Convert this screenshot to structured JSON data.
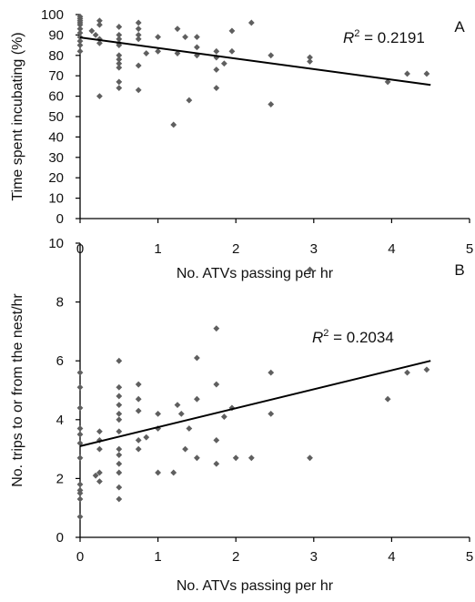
{
  "chart_data": [
    {
      "type": "scatter",
      "panel_letter": "A",
      "xlabel": "No. ATVs passing per hr",
      "ylabel": "Time spent incubating (%)",
      "xlim": [
        0,
        5
      ],
      "ylim": [
        0,
        100
      ],
      "x_ticks": [
        "0",
        "1",
        "2",
        "3",
        "4",
        "5"
      ],
      "y_ticks": [
        "0",
        "10",
        "20",
        "30",
        "40",
        "50",
        "60",
        "70",
        "80",
        "90",
        "100"
      ],
      "r2_prefix": "R",
      "r2_sup": "2",
      "r2_value": " = 0.2191",
      "trendline": {
        "x": [
          0,
          4.5
        ],
        "y": [
          88.8,
          65.5
        ]
      },
      "points": [
        {
          "x": 0,
          "y": 99
        },
        {
          "x": 0,
          "y": 98
        },
        {
          "x": 0,
          "y": 97
        },
        {
          "x": 0,
          "y": 96
        },
        {
          "x": 0,
          "y": 95
        },
        {
          "x": 0,
          "y": 93
        },
        {
          "x": 0,
          "y": 91
        },
        {
          "x": 0,
          "y": 89
        },
        {
          "x": 0,
          "y": 87
        },
        {
          "x": 0,
          "y": 85
        },
        {
          "x": 0,
          "y": 82
        },
        {
          "x": 0.15,
          "y": 92
        },
        {
          "x": 0.2,
          "y": 90
        },
        {
          "x": 0.25,
          "y": 97
        },
        {
          "x": 0.25,
          "y": 95
        },
        {
          "x": 0.25,
          "y": 88
        },
        {
          "x": 0.25,
          "y": 86
        },
        {
          "x": 0.25,
          "y": 60
        },
        {
          "x": 0.5,
          "y": 94
        },
        {
          "x": 0.5,
          "y": 90
        },
        {
          "x": 0.5,
          "y": 88
        },
        {
          "x": 0.5,
          "y": 86
        },
        {
          "x": 0.5,
          "y": 85
        },
        {
          "x": 0.5,
          "y": 80
        },
        {
          "x": 0.5,
          "y": 78
        },
        {
          "x": 0.5,
          "y": 76
        },
        {
          "x": 0.5,
          "y": 74
        },
        {
          "x": 0.5,
          "y": 67
        },
        {
          "x": 0.5,
          "y": 64
        },
        {
          "x": 0.75,
          "y": 96
        },
        {
          "x": 0.75,
          "y": 93
        },
        {
          "x": 0.75,
          "y": 90
        },
        {
          "x": 0.75,
          "y": 88
        },
        {
          "x": 0.75,
          "y": 75
        },
        {
          "x": 0.75,
          "y": 63
        },
        {
          "x": 0.85,
          "y": 81
        },
        {
          "x": 1,
          "y": 89
        },
        {
          "x": 1,
          "y": 82
        },
        {
          "x": 1.2,
          "y": 46
        },
        {
          "x": 1.25,
          "y": 93
        },
        {
          "x": 1.25,
          "y": 81
        },
        {
          "x": 1.35,
          "y": 89
        },
        {
          "x": 1.4,
          "y": 58
        },
        {
          "x": 1.5,
          "y": 89
        },
        {
          "x": 1.5,
          "y": 84
        },
        {
          "x": 1.5,
          "y": 80
        },
        {
          "x": 1.75,
          "y": 82
        },
        {
          "x": 1.75,
          "y": 79
        },
        {
          "x": 1.75,
          "y": 73
        },
        {
          "x": 1.75,
          "y": 64
        },
        {
          "x": 1.85,
          "y": 76
        },
        {
          "x": 1.95,
          "y": 92
        },
        {
          "x": 1.95,
          "y": 82
        },
        {
          "x": 2.2,
          "y": 96
        },
        {
          "x": 2.45,
          "y": 80
        },
        {
          "x": 2.45,
          "y": 56
        },
        {
          "x": 2.95,
          "y": 79
        },
        {
          "x": 2.95,
          "y": 77
        },
        {
          "x": 3.95,
          "y": 67
        },
        {
          "x": 4.2,
          "y": 71
        },
        {
          "x": 4.45,
          "y": 71
        }
      ]
    },
    {
      "type": "scatter",
      "panel_letter": "B",
      "xlabel": "No. ATVs passing per hr",
      "ylabel": "No. trips to or from the nest/hr",
      "xlim": [
        0,
        5
      ],
      "ylim": [
        0,
        10
      ],
      "x_ticks": [
        "0",
        "1",
        "2",
        "3",
        "4",
        "5"
      ],
      "y_ticks": [
        "0",
        "2",
        "4",
        "6",
        "8",
        "10"
      ],
      "r2_prefix": "R",
      "r2_sup": "2",
      "r2_value": " = 0.2034",
      "trendline": {
        "x": [
          0,
          4.5
        ],
        "y": [
          3.1,
          6.0
        ]
      },
      "points": [
        {
          "x": 0,
          "y": 5.6
        },
        {
          "x": 0,
          "y": 5.1
        },
        {
          "x": 0,
          "y": 4.4
        },
        {
          "x": 0,
          "y": 3.7
        },
        {
          "x": 0,
          "y": 3.5
        },
        {
          "x": 0,
          "y": 3.2
        },
        {
          "x": 0,
          "y": 2.7
        },
        {
          "x": 0,
          "y": 1.8
        },
        {
          "x": 0,
          "y": 1.6
        },
        {
          "x": 0,
          "y": 1.5
        },
        {
          "x": 0,
          "y": 1.3
        },
        {
          "x": 0,
          "y": 0.7
        },
        {
          "x": 0.2,
          "y": 2.1
        },
        {
          "x": 0.25,
          "y": 3.6
        },
        {
          "x": 0.25,
          "y": 3.3
        },
        {
          "x": 0.25,
          "y": 3.0
        },
        {
          "x": 0.25,
          "y": 2.2
        },
        {
          "x": 0.25,
          "y": 1.9
        },
        {
          "x": 0.5,
          "y": 6.0
        },
        {
          "x": 0.5,
          "y": 5.1
        },
        {
          "x": 0.5,
          "y": 4.8
        },
        {
          "x": 0.5,
          "y": 4.5
        },
        {
          "x": 0.5,
          "y": 4.2
        },
        {
          "x": 0.5,
          "y": 4.0
        },
        {
          "x": 0.5,
          "y": 3.6
        },
        {
          "x": 0.5,
          "y": 3.0
        },
        {
          "x": 0.5,
          "y": 2.8
        },
        {
          "x": 0.5,
          "y": 2.5
        },
        {
          "x": 0.5,
          "y": 2.2
        },
        {
          "x": 0.5,
          "y": 1.7
        },
        {
          "x": 0.5,
          "y": 1.3
        },
        {
          "x": 0.75,
          "y": 5.2
        },
        {
          "x": 0.75,
          "y": 4.7
        },
        {
          "x": 0.75,
          "y": 4.3
        },
        {
          "x": 0.75,
          "y": 3.3
        },
        {
          "x": 0.75,
          "y": 3.0
        },
        {
          "x": 0.85,
          "y": 3.4
        },
        {
          "x": 1,
          "y": 4.2
        },
        {
          "x": 1,
          "y": 3.7
        },
        {
          "x": 1,
          "y": 2.2
        },
        {
          "x": 1.2,
          "y": 2.2
        },
        {
          "x": 1.25,
          "y": 4.5
        },
        {
          "x": 1.3,
          "y": 4.2
        },
        {
          "x": 1.35,
          "y": 3.0
        },
        {
          "x": 1.4,
          "y": 3.7
        },
        {
          "x": 1.5,
          "y": 6.1
        },
        {
          "x": 1.5,
          "y": 4.7
        },
        {
          "x": 1.5,
          "y": 2.7
        },
        {
          "x": 1.75,
          "y": 7.1
        },
        {
          "x": 1.75,
          "y": 5.2
        },
        {
          "x": 1.75,
          "y": 3.3
        },
        {
          "x": 1.75,
          "y": 2.5
        },
        {
          "x": 1.85,
          "y": 4.1
        },
        {
          "x": 1.95,
          "y": 4.4
        },
        {
          "x": 2,
          "y": 2.7
        },
        {
          "x": 2.2,
          "y": 2.7
        },
        {
          "x": 2.45,
          "y": 5.6
        },
        {
          "x": 2.45,
          "y": 4.2
        },
        {
          "x": 2.95,
          "y": 9.1
        },
        {
          "x": 2.95,
          "y": 2.7
        },
        {
          "x": 3.95,
          "y": 4.7
        },
        {
          "x": 4.2,
          "y": 5.6
        },
        {
          "x": 4.45,
          "y": 5.7
        }
      ]
    }
  ]
}
